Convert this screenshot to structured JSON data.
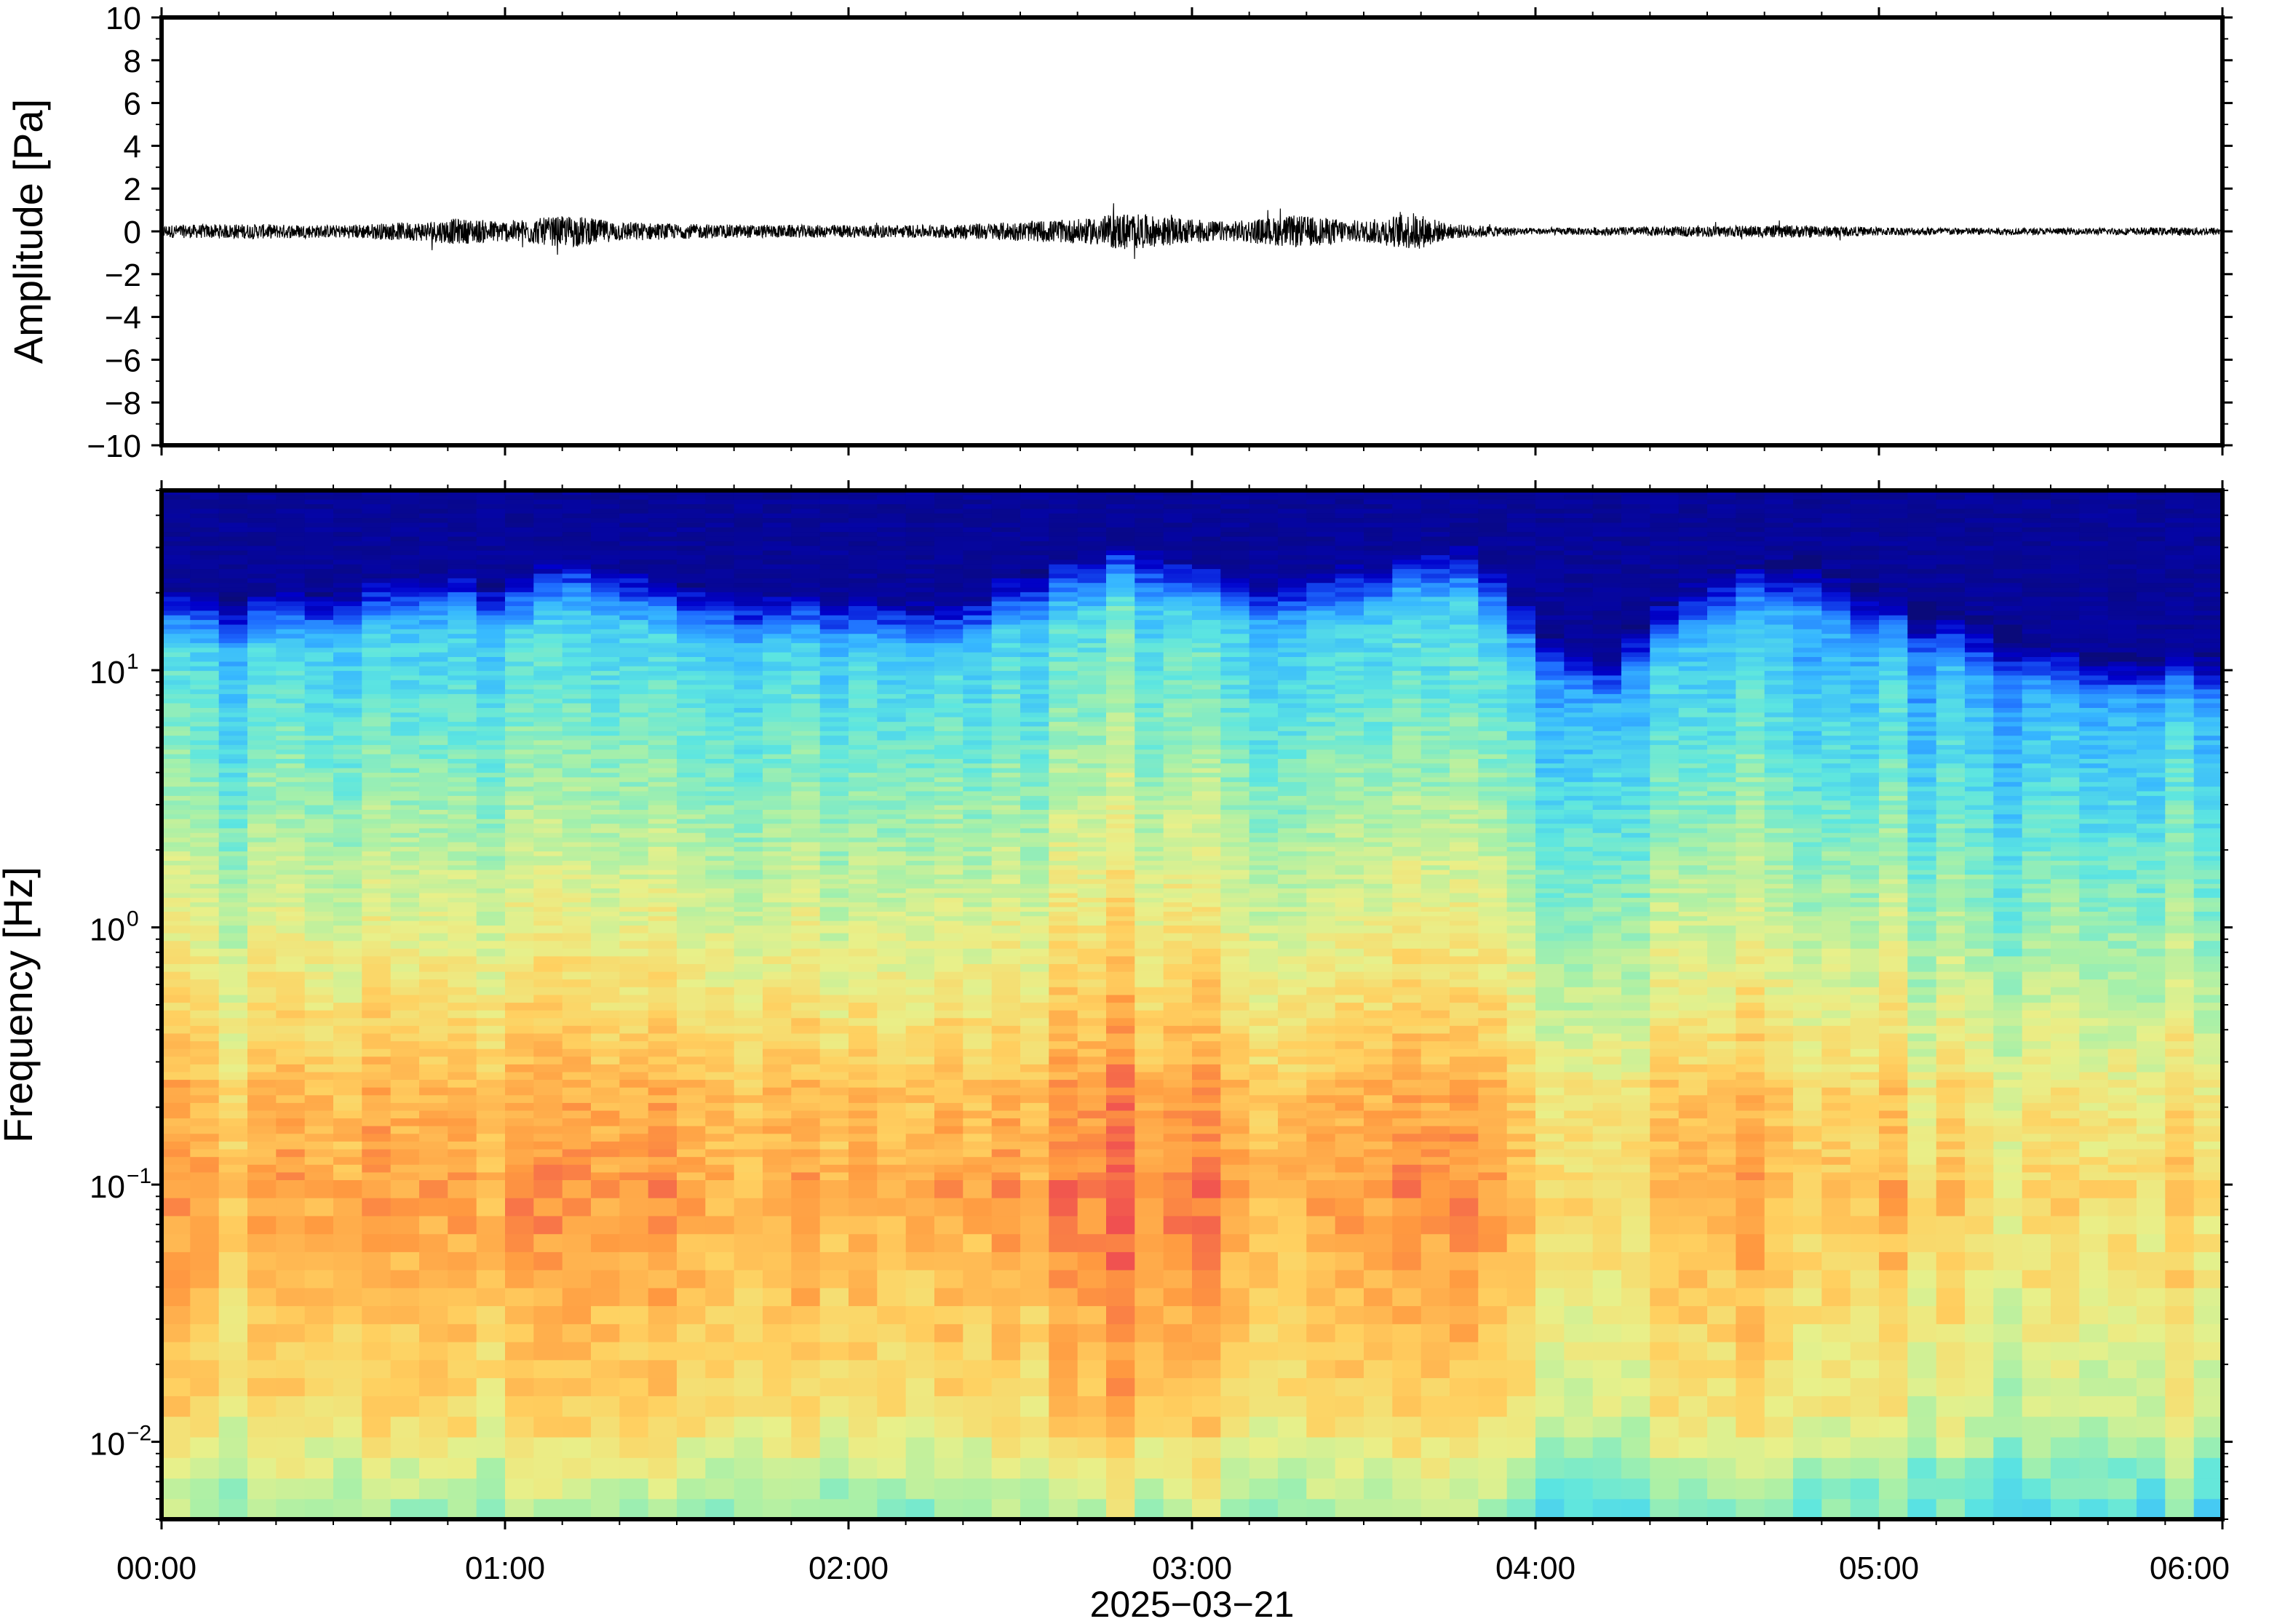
{
  "figure": {
    "date_label": "2025−03−21"
  },
  "chart_data": [
    {
      "type": "line",
      "title": "",
      "ylabel": "Amplitude [Pa]",
      "xlabel": "",
      "ylim": [
        -10,
        10
      ],
      "yticks": [
        10,
        8,
        6,
        4,
        2,
        0,
        -2,
        -4,
        -6,
        -8,
        -10
      ],
      "ytick_labels": [
        "10",
        "8",
        "6",
        "4",
        "2",
        "0",
        "−2",
        "−4",
        "−6",
        "−8",
        "−10"
      ],
      "xlim_hours": [
        0,
        6
      ],
      "grid": false,
      "series": [
        {
          "color": "#000000",
          "envelope_hours": [
            0.0,
            0.25,
            0.5,
            0.75,
            0.85,
            1.0,
            1.2,
            1.3,
            1.5,
            1.75,
            2.0,
            2.25,
            2.5,
            2.7,
            2.8,
            2.9,
            3.1,
            3.3,
            3.5,
            3.65,
            3.75,
            4.0,
            4.25,
            4.5,
            4.75,
            5.0,
            5.5,
            6.0
          ],
          "envelope_pa": [
            0.3,
            0.35,
            0.3,
            0.45,
            0.6,
            0.5,
            0.75,
            0.5,
            0.35,
            0.3,
            0.3,
            0.3,
            0.45,
            0.6,
            0.9,
            0.7,
            0.45,
            0.75,
            0.5,
            0.9,
            0.35,
            0.15,
            0.2,
            0.25,
            0.3,
            0.2,
            0.15,
            0.2
          ]
        }
      ]
    },
    {
      "type": "heatmap",
      "title": "",
      "ylabel": "Frequency [Hz]",
      "xlabel": "2025−03−21",
      "y_scale": "log",
      "ylim": [
        0.005,
        50
      ],
      "yticks": [
        0.01,
        0.1,
        1,
        10
      ],
      "ytick_labels": [
        {
          "base": "10",
          "exp": "−2"
        },
        {
          "base": "10",
          "exp": "−1"
        },
        {
          "base": "10",
          "exp": "0"
        },
        {
          "base": "10",
          "exp": "1"
        }
      ],
      "xlim_hours": [
        0,
        6
      ],
      "xticks_hours": [
        0,
        1,
        2,
        3,
        4,
        5,
        6
      ],
      "xtick_labels": [
        "00:00",
        "01:00",
        "02:00",
        "03:00",
        "04:00",
        "05:00",
        "06:00"
      ],
      "colormap": "jet",
      "colormap_stops": [
        "#0a0a7a",
        "#0000cc",
        "#1e6cff",
        "#37b8ff",
        "#5de6e0",
        "#a8f0a8",
        "#e8f08a",
        "#ffd060",
        "#ff9a40",
        "#f05050"
      ],
      "time_step_minutes": 5,
      "time_profile_hours": [
        0.0,
        0.5,
        0.85,
        1.0,
        1.2,
        1.5,
        1.75,
        2.0,
        2.3,
        2.5,
        2.75,
        2.85,
        3.0,
        3.3,
        3.5,
        3.65,
        3.8,
        4.0,
        4.2,
        4.5,
        4.8,
        5.0,
        5.3,
        5.6,
        6.0
      ],
      "upper_cutoff_hz": [
        20,
        20,
        25,
        22,
        28,
        22,
        20,
        20,
        18,
        24,
        28,
        30,
        25,
        24,
        26,
        30,
        30,
        16,
        12,
        24,
        28,
        20,
        16,
        12,
        12
      ],
      "activity_level": [
        0.55,
        0.55,
        0.62,
        0.6,
        0.66,
        0.58,
        0.55,
        0.6,
        0.52,
        0.62,
        0.75,
        0.72,
        0.65,
        0.62,
        0.65,
        0.8,
        0.6,
        0.42,
        0.4,
        0.52,
        0.55,
        0.45,
        0.35,
        0.3,
        0.35
      ]
    }
  ]
}
